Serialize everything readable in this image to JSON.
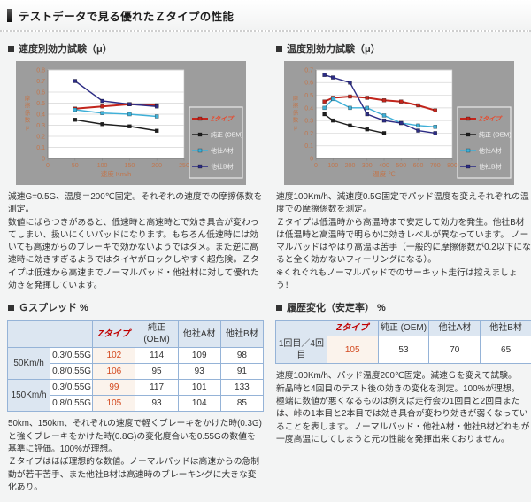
{
  "page": {
    "title": "テストデータで見る優れたＺタイプの性能"
  },
  "colors": {
    "z_red": "#c2251c",
    "oem_black": "#1f1f1f",
    "companyA_cyan": "#3fb0d8",
    "companyB_navy": "#2d2d85",
    "chart_bg": "#9d9d9d",
    "tick_text": "#c1764d",
    "table_border": "#95b3d7",
    "table_header_bg": "#dce6f1",
    "z_value_text": "#d2481e"
  },
  "left": {
    "section1_title": "速度別効力試験（μ）",
    "paragraph1": [
      "減速G=0.5G、温度＝200℃固定。それぞれの速度での摩擦係数を測定。",
      "数値にばらつきがあると、低速時と高速時とで効き具合が変わってしまい、扱いにくいパッドになります。もちろん低速時には効いても高速からのブレーキで効かないようではダメ。また逆に高速時に効きすぎるようではタイヤがロックしやすく超危険。Ｚタイプは低速から高速までノーマルパッド・他社材に対して優れた効きを発揮しています。"
    ],
    "section2_title": "Ｇスプレッド %",
    "table": {
      "header": [
        "",
        "",
        "Zタイプ",
        "純正\n(OEM)",
        "他社A材",
        "他社B材"
      ],
      "z_col": 2,
      "row_groups": [
        {
          "label": "50Km/h",
          "rows": [
            {
              "sub": "0.3/0.55G",
              "values": [
                "102",
                "114",
                "109",
                "98"
              ]
            },
            {
              "sub": "0.8/0.55G",
              "values": [
                "106",
                "95",
                "93",
                "91"
              ]
            }
          ]
        },
        {
          "label": "150Km/h",
          "rows": [
            {
              "sub": "0.3/0.55G",
              "values": [
                "99",
                "117",
                "101",
                "133"
              ]
            },
            {
              "sub": "0.8/0.55G",
              "values": [
                "105",
                "93",
                "104",
                "85"
              ]
            }
          ]
        }
      ]
    },
    "paragraph2": [
      "50km、150km、それぞれの速度で軽くブレーキをかけた時(0.3G)と強くブレーキをかけた時(0.8G)の変化度合いを0.55Gの数値を基準に評価。100%が理想。",
      "Ｚタイプはほぼ理想的な数値。ノーマルパッドは高速からの急制動が若干苦手、また他社B材は高速時のブレーキングに大きな変化あり。"
    ]
  },
  "right": {
    "section1_title": "温度別効力試験（μ）",
    "paragraph1": [
      "速度100Km/h、減速度0.5G固定でパッド温度を変えそれぞれの温度での摩擦係数を測定。",
      "Ｚタイプは低温時から高温時まで安定して効力を発生。他社B材は低温時と高温時で明らかに効きレベルが異なっています。 ノーマルパッドはやはり高温は苦手（一般的に摩擦係数が0.2以下になると全く効かないフィーリングになる）。",
      "※くれぐれもノーマルパッドでのサーキット走行は控えましょう！"
    ],
    "section2_title": "履歴変化（安定率） %",
    "table": {
      "header": [
        "",
        "Zタイプ",
        "純正 (OEM)",
        "他社A材",
        "他社B材"
      ],
      "z_col": 1,
      "rows": [
        {
          "label": "1回目／4回目",
          "values": [
            "105",
            "53",
            "70",
            "65"
          ]
        }
      ]
    },
    "paragraph2": [
      "速度100Km/h、パッド温度200℃固定。減速Ｇを変えて試験。",
      "新品時と4回目のテスト後の効きの変化を測定。100%が理想。",
      "極端に数値が悪くなるものは例えば走行会の1回目と2回目または、峠の1本目と2本目では効き具合が変わり効きが弱くなっていることを表します。ノーマルパッド・他社A材・他社B材どれもが一度高温にしてしまうと元の性能を発揮出来ておりません。"
    ]
  },
  "chart_data": [
    {
      "type": "line",
      "title": "速度別効力試験（μ）",
      "xlabel": "速度 Km/h",
      "ylabel": "摩擦係数 μ",
      "xlim": [
        0,
        250
      ],
      "ylim": [
        0,
        0.8
      ],
      "xticks": [
        0,
        50,
        100,
        150,
        200,
        250
      ],
      "yticks": [
        0,
        0.1,
        0.2,
        0.3,
        0.4,
        0.5,
        0.6,
        0.7,
        0.8
      ],
      "grid": "horizontal",
      "legend_position": "right",
      "series": [
        {
          "name": "Zタイプ",
          "color": "#c2251c",
          "legend_text_color": "#e8492c",
          "x": [
            50,
            100,
            150,
            200
          ],
          "y": [
            0.45,
            0.47,
            0.49,
            0.48
          ]
        },
        {
          "name": "純正 (OEM)",
          "color": "#1f1f1f",
          "legend_text_color": "#f2f2f2",
          "x": [
            50,
            100,
            150,
            200
          ],
          "y": [
            0.35,
            0.31,
            0.29,
            0.25
          ]
        },
        {
          "name": "他社A材",
          "color": "#3fb0d8",
          "legend_text_color": "#f2f2f2",
          "x": [
            50,
            100,
            150,
            200
          ],
          "y": [
            0.44,
            0.41,
            0.4,
            0.38
          ]
        },
        {
          "name": "他社B材",
          "color": "#2d2d85",
          "legend_text_color": "#f2f2f2",
          "x": [
            50,
            100,
            150,
            200
          ],
          "y": [
            0.7,
            0.52,
            0.49,
            0.47
          ]
        }
      ]
    },
    {
      "type": "line",
      "title": "温度別効力試験（μ）",
      "xlabel": "温度 ℃",
      "ylabel": "摩擦係数 μ",
      "xlim": [
        0,
        800
      ],
      "ylim": [
        0,
        0.7
      ],
      "xticks": [
        0,
        100,
        200,
        300,
        400,
        500,
        600,
        700,
        800
      ],
      "yticks": [
        0,
        0.1,
        0.2,
        0.3,
        0.4,
        0.5,
        0.6,
        0.7
      ],
      "grid": "horizontal",
      "legend_position": "right",
      "series": [
        {
          "name": "Zタイプ",
          "color": "#c2251c",
          "legend_text_color": "#e8492c",
          "x": [
            50,
            100,
            200,
            300,
            400,
            500,
            600,
            700
          ],
          "y": [
            0.45,
            0.48,
            0.49,
            0.48,
            0.46,
            0.45,
            0.42,
            0.38
          ]
        },
        {
          "name": "純正 (OEM)",
          "color": "#1f1f1f",
          "legend_text_color": "#f2f2f2",
          "x": [
            50,
            100,
            200,
            300,
            400
          ],
          "y": [
            0.35,
            0.3,
            0.26,
            0.23,
            0.2
          ]
        },
        {
          "name": "他社A材",
          "color": "#3fb0d8",
          "legend_text_color": "#f2f2f2",
          "x": [
            50,
            100,
            200,
            300,
            400,
            500,
            600,
            700
          ],
          "y": [
            0.4,
            0.47,
            0.4,
            0.4,
            0.34,
            0.28,
            0.26,
            0.25
          ]
        },
        {
          "name": "他社B材",
          "color": "#2d2d85",
          "legend_text_color": "#f2f2f2",
          "x": [
            50,
            100,
            200,
            300,
            400,
            500,
            600,
            700
          ],
          "y": [
            0.66,
            0.64,
            0.6,
            0.35,
            0.3,
            0.28,
            0.22,
            0.2
          ]
        }
      ]
    }
  ]
}
